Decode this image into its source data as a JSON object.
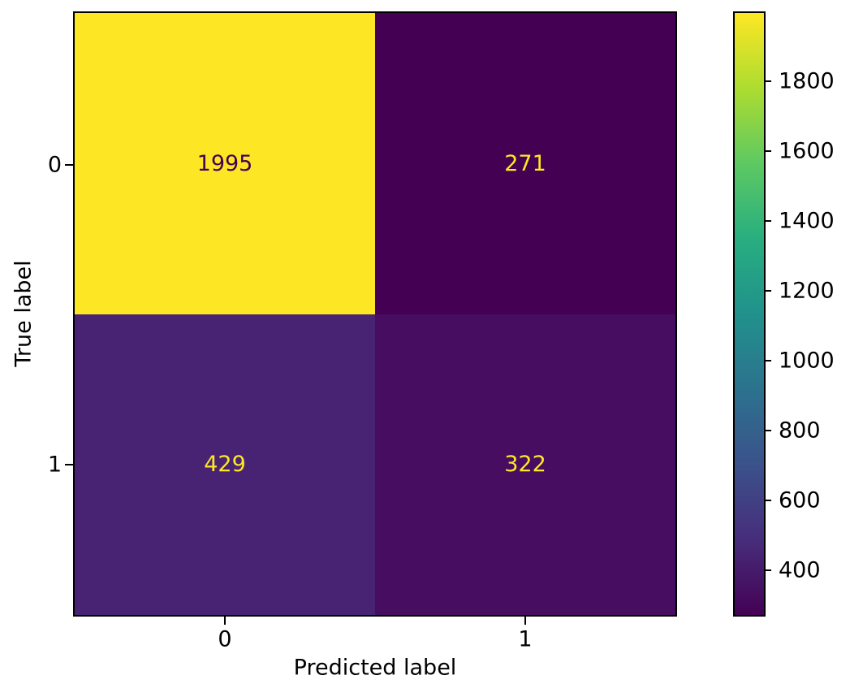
{
  "chart_data": {
    "type": "heatmap",
    "title": "",
    "xlabel": "Predicted label",
    "ylabel": "True label",
    "x_tick_labels": [
      "0",
      "1"
    ],
    "y_tick_labels": [
      "0",
      "1"
    ],
    "matrix": [
      [
        1995,
        271
      ],
      [
        429,
        322
      ]
    ],
    "cell_colors": [
      [
        "#fde725",
        "#440154"
      ],
      [
        "#482374",
        "#470d60"
      ]
    ],
    "cell_text_colors": [
      [
        "#440154",
        "#fde725"
      ],
      [
        "#fde725",
        "#fde725"
      ]
    ],
    "legend_position": "right",
    "grid": false,
    "colorbar": {
      "colormap": "viridis",
      "min": 271,
      "max": 1995,
      "ticks": [
        400,
        600,
        800,
        1000,
        1200,
        1400,
        1600,
        1800
      ],
      "gradient_stops": [
        "#440154",
        "#472d7b",
        "#3b528b",
        "#2c728e",
        "#21918c",
        "#28ae80",
        "#5ec962",
        "#addc30",
        "#fde725"
      ]
    }
  }
}
